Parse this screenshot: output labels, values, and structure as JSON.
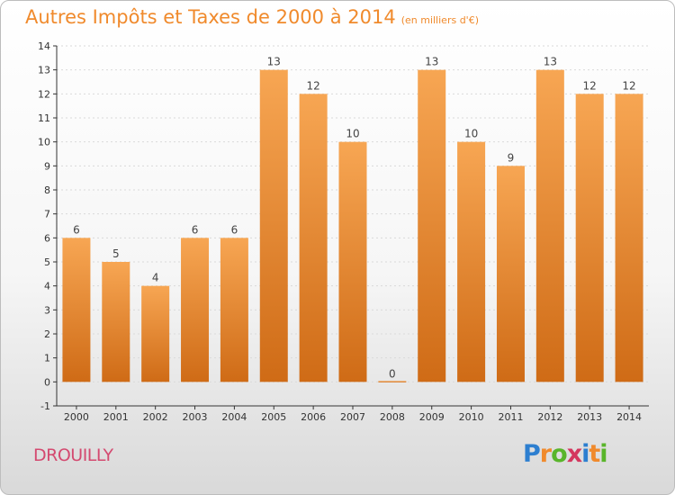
{
  "title": {
    "main": "Autres Impôts et Taxes de 2000 à 2014",
    "unit": "(en milliers d'€)"
  },
  "commune": "DROUILLY",
  "brand": {
    "letters": [
      "P",
      "r",
      "o",
      "x",
      "i",
      "t",
      "i"
    ],
    "colors": [
      "#2d7fd0",
      "#f08a2c",
      "#59b52a",
      "#d4365e",
      "#2d7fd0",
      "#f08a2c",
      "#59b52a"
    ]
  },
  "colors": {
    "bar_top": "#f7a653",
    "bar_bottom": "#cf6b16",
    "axis": "#333333",
    "grid": "#d9d9d9",
    "title": "#f08a2c",
    "commune": "#d44a70"
  },
  "chart_data": {
    "type": "bar",
    "title": "Autres Impôts et Taxes de 2000 à 2014",
    "subtitle": "(en milliers d'€)",
    "xlabel": "",
    "ylabel": "",
    "ylim": [
      -1,
      14
    ],
    "yticks": [
      -1,
      0,
      1,
      2,
      3,
      4,
      5,
      6,
      7,
      8,
      9,
      10,
      11,
      12,
      13,
      14
    ],
    "grid": true,
    "categories": [
      "2000",
      "2001",
      "2002",
      "2003",
      "2004",
      "2005",
      "2006",
      "2007",
      "2008",
      "2009",
      "2010",
      "2011",
      "2012",
      "2013",
      "2014"
    ],
    "values": [
      6,
      5,
      4,
      6,
      6,
      13,
      12,
      10,
      0,
      13,
      10,
      9,
      13,
      12,
      12
    ],
    "labels": [
      "6",
      "5",
      "4",
      "6",
      "6",
      "13",
      "12",
      "10",
      "0",
      "13",
      "10",
      "9",
      "13",
      "12",
      "12"
    ]
  }
}
